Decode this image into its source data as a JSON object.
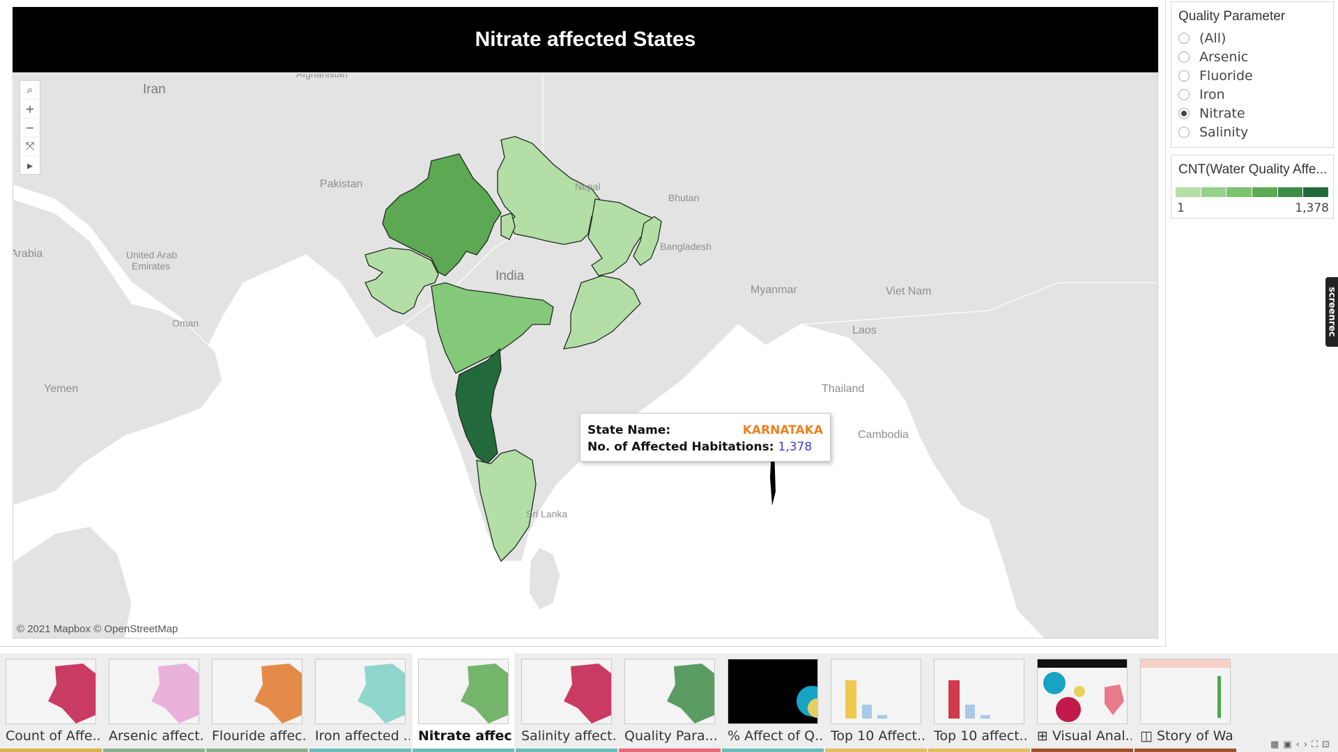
{
  "title": "Nitrate affected States",
  "map": {
    "labels": {
      "afghanistan": "Afghanistan",
      "iran": "Iran",
      "pakistan": "Pakistan",
      "nepal": "Nepal",
      "bhutan": "Bhutan",
      "bangladesh": "Bangladesh",
      "india": "India",
      "myanmar": "Myanmar",
      "vietnam": "Viet Nam",
      "laos": "Laos",
      "thailand": "Thailand",
      "cambodia": "Cambodia",
      "srilanka": "Sri Lanka",
      "uae_line1": "United Arab",
      "uae_line2": "Emirates",
      "arabia": "Arabia",
      "oman": "Oman",
      "yemen": "Yemen"
    },
    "attribution": "© 2021 Mapbox © OpenStreetMap",
    "colors": {
      "land": "#e3e3e3",
      "water": "#ffffff",
      "border": "#ffffff",
      "state_light": "#b3dea5",
      "state_mid": "#84c87a",
      "state_mid_dark": "#5da852",
      "state_darkest": "#226a3c",
      "state_outline": "#1e2a1e"
    },
    "toolbar": {
      "search_icon": "search-icon",
      "zoom_in": "+",
      "zoom_out": "−",
      "reset_icon": "reset-axes-icon",
      "play_icon": "play-icon"
    }
  },
  "tooltip": {
    "state_label": "State Name:",
    "state_value": "KARNATAKA",
    "habitations_label": "No. of Affected Habitations:",
    "habitations_value": "1,378"
  },
  "filter": {
    "title": "Quality Parameter",
    "options": [
      "(All)",
      "Arsenic",
      "Fluoride",
      "Iron",
      "Nitrate",
      "Salinity"
    ],
    "selected": "Nitrate"
  },
  "legend": {
    "title": "CNT(Water Quality Affe...",
    "min": "1",
    "max": "1,378",
    "colors": [
      "#b3dea5",
      "#97d18b",
      "#7cc26f",
      "#5da852",
      "#3f8c48",
      "#226a3c"
    ]
  },
  "watermark": "screenrec",
  "story": {
    "tabs": [
      {
        "label": "Count of Affe...",
        "bar_color": "#d8b34a",
        "thumb_color": "#c21a4a"
      },
      {
        "label": "Arsenic affect...",
        "bar_color": "#8fb08f",
        "thumb_color": "#e6a6d8"
      },
      {
        "label": "Flouride affec...",
        "bar_color": "#8fb08f",
        "thumb_color": "#e0782a"
      },
      {
        "label": "Iron affected ...",
        "bar_color": "#6cbcb8",
        "thumb_color": "#7fd0c4"
      },
      {
        "label": "Nitrate affec...",
        "bar_color": "#6cbcb8",
        "thumb_color": "#5da852"
      },
      {
        "label": "Salinity affect...",
        "bar_color": "#6cbcb8",
        "thumb_color": "#c21a4a"
      },
      {
        "label": "Quality Para...",
        "bar_color": "#e86a7a",
        "thumb_color": "#3f8c48"
      },
      {
        "label": "% Affect of Q...",
        "bar_color": "#6cbcb8",
        "thumb_color": "#17a3c4"
      },
      {
        "label": "Top 10 Affect...",
        "bar_color": "#e0c060",
        "thumb_color": "#f0c850"
      },
      {
        "label": "Top 10 affect...",
        "bar_color": "#e0c060",
        "thumb_color": "#d03a4a"
      },
      {
        "label": "⊞ Visual Anal...",
        "bar_color": "#a0522d",
        "thumb_color": "#c21a4a"
      },
      {
        "label": "◫ Story of Wa...",
        "bar_color": "#a0522d",
        "thumb_color": "#4aa84a"
      }
    ],
    "active_index": 4
  }
}
